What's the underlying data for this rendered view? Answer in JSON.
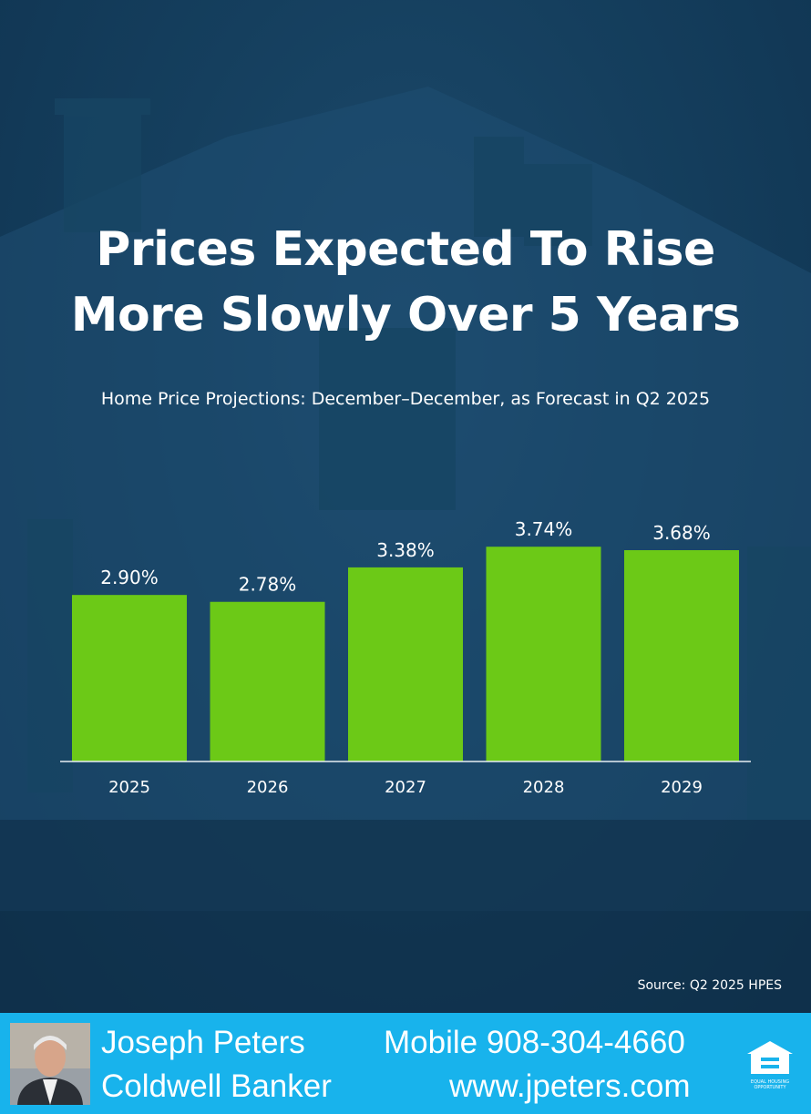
{
  "header": {
    "title_line1": "Prices Expected To Rise",
    "title_line2": "More Slowly Over 5 Years",
    "subtitle": "Home Price Projections: December–December, as Forecast in Q2 2025"
  },
  "chart_data": {
    "type": "bar",
    "title": "Prices Expected To Rise More Slowly Over 5 Years",
    "subtitle": "Home Price Projections: December–December, as Forecast in Q2 2025",
    "categories": [
      "2025",
      "2026",
      "2027",
      "2028",
      "2029"
    ],
    "values": [
      2.9,
      2.78,
      3.38,
      3.74,
      3.68
    ],
    "value_labels": [
      "2.90%",
      "2.78%",
      "3.38%",
      "3.74%",
      "3.68%"
    ],
    "xlabel": "",
    "ylabel": "",
    "ylim": [
      0,
      4.6
    ],
    "grid": false,
    "legend": "none",
    "bar_color": "#6cc917"
  },
  "source": "Source: Q2 2025 HPES",
  "footer": {
    "name": "Joseph Peters",
    "company": "Coldwell Banker",
    "phone": "Mobile 908-304-4660",
    "website": "www.jpeters.com",
    "badge_text": "EQUAL HOUSING OPPORTUNITY",
    "badge_icon": "equal-housing-icon",
    "background_color": "#18b3ec"
  },
  "colors": {
    "background": "#153f5e",
    "text": "#ffffff",
    "bar": "#6cc917"
  }
}
